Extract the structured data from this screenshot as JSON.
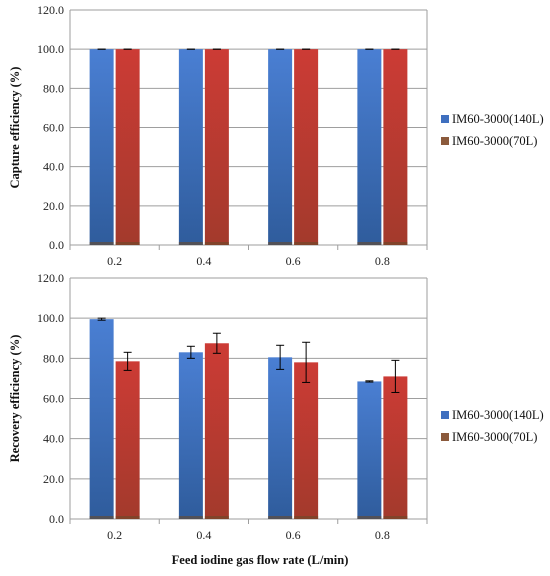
{
  "colors": {
    "series_140L": "#3f6fbf",
    "series_70L": "#c0392b",
    "series_140L_legend": "#3f6fbf",
    "series_70L_legend": "#8b5a3c",
    "grid": "#9e9e9e"
  },
  "x_axis_title": "Feed iodine gas flow rate (L/min)",
  "chart_data": [
    {
      "type": "bar",
      "categories": [
        "0.2",
        "0.4",
        "0.6",
        "0.8"
      ],
      "series": [
        {
          "name": "IM60-3000(140L)",
          "values": [
            100,
            100,
            100,
            100
          ],
          "errors": [
            0,
            0,
            0,
            0
          ]
        },
        {
          "name": "IM60-3000(70L)",
          "values": [
            100,
            100,
            100,
            100
          ],
          "errors": [
            0,
            0,
            0,
            0
          ]
        }
      ],
      "ylabel": "Capture efficiency (%)",
      "ylim": [
        0,
        120
      ],
      "yticks": [
        "0.0",
        "20.0",
        "40.0",
        "60.0",
        "80.0",
        "100.0",
        "120.0"
      ],
      "grid": true,
      "legend": "right"
    },
    {
      "type": "bar",
      "categories": [
        "0.2",
        "0.4",
        "0.6",
        "0.8"
      ],
      "series": [
        {
          "name": "IM60-3000(140L)",
          "values": [
            99.5,
            83,
            80.5,
            68.5
          ],
          "errors": [
            0.5,
            3,
            6,
            0.3
          ]
        },
        {
          "name": "IM60-3000(70L)",
          "values": [
            78.5,
            87.5,
            78,
            71
          ],
          "errors": [
            4.5,
            5,
            10,
            8
          ]
        }
      ],
      "ylabel": "Recovery efficiency (%)",
      "ylim": [
        0,
        120
      ],
      "yticks": [
        "0.0",
        "20.0",
        "40.0",
        "60.0",
        "80.0",
        "100.0",
        "120.0"
      ],
      "grid": true,
      "legend": "right"
    }
  ]
}
